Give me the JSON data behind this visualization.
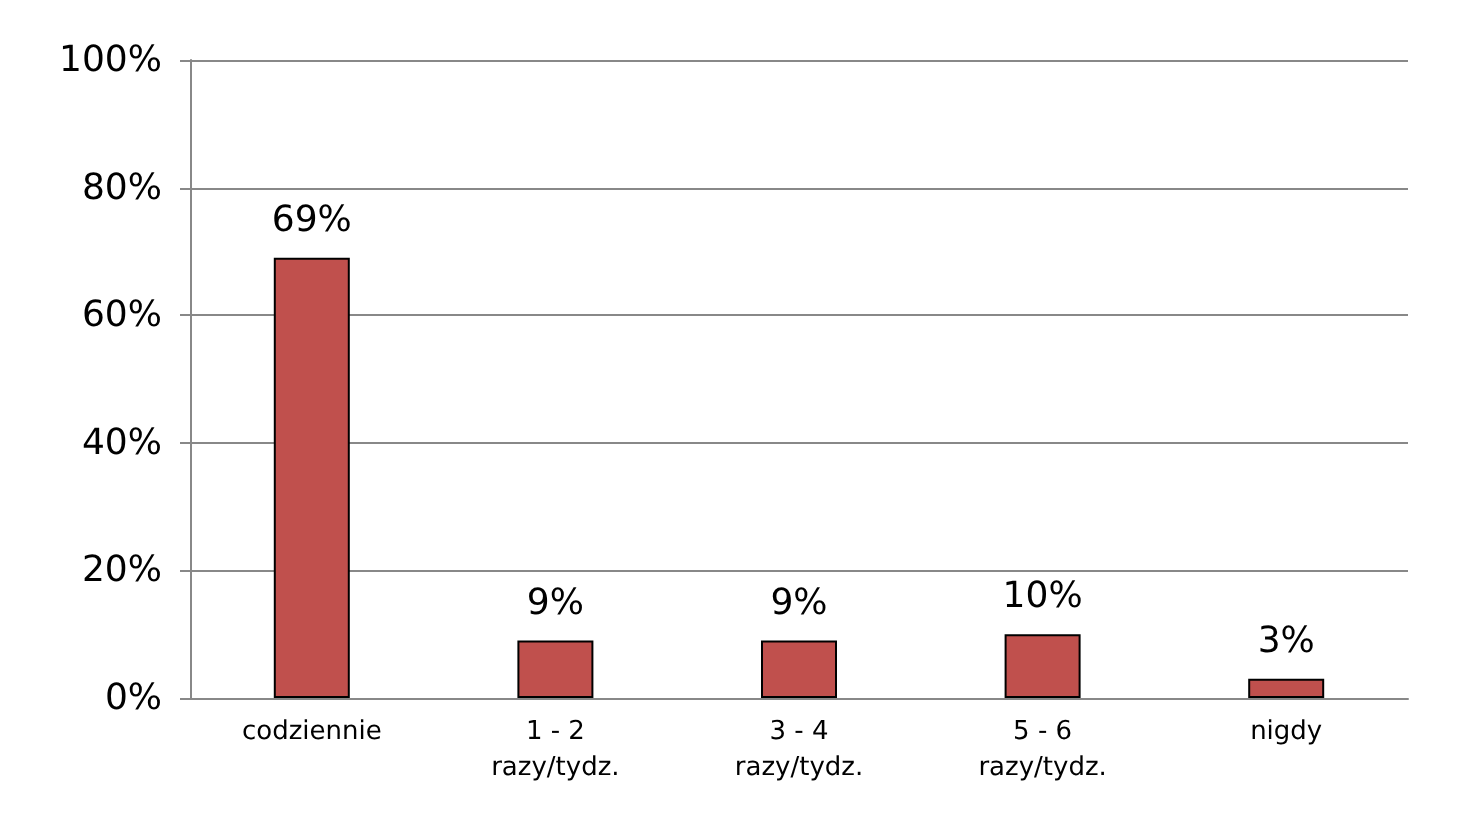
{
  "chart_data": {
    "type": "bar",
    "categories": [
      "codziennie",
      "1 - 2\nrazy/tydz.",
      "3 - 4\nrazy/tydz.",
      "5 - 6\nrazy/tydz.",
      "nigdy"
    ],
    "values": [
      69,
      9,
      9,
      10,
      3
    ],
    "value_labels": [
      "69%",
      "9%",
      "9%",
      "10%",
      "3%"
    ],
    "color": "#c0504d",
    "ylim": [
      0,
      100
    ],
    "yticks": [
      {
        "value": 0,
        "label": "0%"
      },
      {
        "value": 20,
        "label": "20%"
      },
      {
        "value": 40,
        "label": "40%"
      },
      {
        "value": 60,
        "label": "60%"
      },
      {
        "value": 80,
        "label": "80%"
      },
      {
        "value": 100,
        "label": "100%"
      }
    ],
    "grid": "y"
  }
}
